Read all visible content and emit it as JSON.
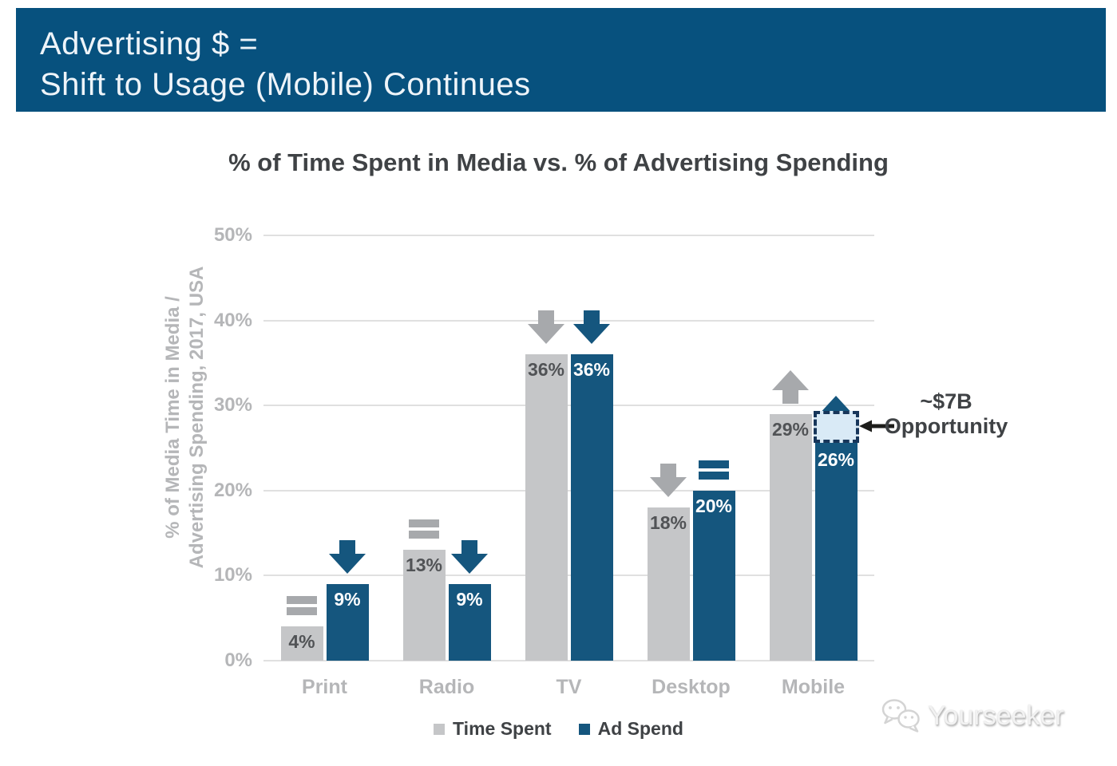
{
  "header": {
    "title_line1": "Advertising $ =",
    "title_line2": "Shift to Usage (Mobile) Continues"
  },
  "chart_data": {
    "type": "bar",
    "title": "% of Time Spent in Media vs. % of Advertising Spending",
    "ylabel_line1": "% of Media Time in Media /",
    "ylabel_line2": "Advertising Spending, 2017, USA",
    "categories": [
      "Print",
      "Radio",
      "TV",
      "Desktop",
      "Mobile"
    ],
    "series": [
      {
        "name": "Time Spent",
        "color": "#c5c6c8",
        "label_color": "#515356",
        "trend_color": "#a7a9ac",
        "values": [
          4,
          13,
          36,
          18,
          29
        ],
        "labels": [
          "4%",
          "13%",
          "36%",
          "18%",
          "29%"
        ],
        "trends": [
          "flat",
          "flat",
          "down",
          "down",
          "up"
        ]
      },
      {
        "name": "Ad Spend",
        "color": "#15567e",
        "label_color": "#ffffff",
        "trend_color": "#15567e",
        "values": [
          9,
          9,
          36,
          20,
          26
        ],
        "labels": [
          "9%",
          "9%",
          "36%",
          "20%",
          "26%"
        ],
        "trends": [
          "down",
          "down",
          "down",
          "flat",
          "up"
        ]
      }
    ],
    "ylim": [
      0,
      50
    ],
    "yticks": [
      0,
      10,
      20,
      30,
      40,
      50
    ],
    "ytick_labels": [
      "0%",
      "10%",
      "20%",
      "30%",
      "40%",
      "50%"
    ],
    "grid": true,
    "legend_position": "bottom"
  },
  "annotation": {
    "line1": "~$7B",
    "line2": "Opportunity",
    "target_category": "Mobile",
    "target_series": "Ad Spend",
    "range_pct": [
      26,
      29
    ],
    "box_fill": "#d9eaf6",
    "box_border": "#17365a",
    "arrow_color": "#1d1d1b"
  },
  "watermark": {
    "text": "Yourseeker"
  },
  "colors": {
    "banner_bg": "#07517e",
    "banner_text": "#eef4f9",
    "title_text": "#3f4245",
    "axis_text": "#b5b6b8",
    "gridline": "#e0e0e0",
    "annotation_text": "#3f4245"
  }
}
